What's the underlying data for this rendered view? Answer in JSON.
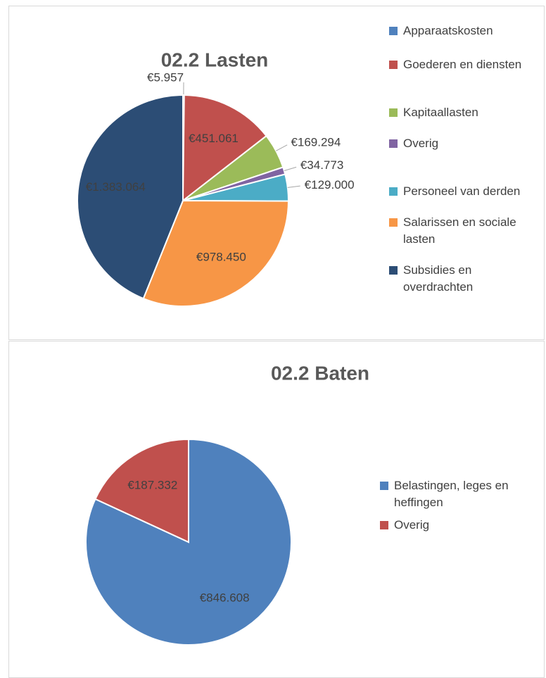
{
  "chart_data": [
    {
      "type": "pie",
      "title": "02.2 Lasten",
      "categories": [
        "Apparaatskosten",
        "Goederen en diensten",
        "Kapitaallasten",
        "Overig",
        "Personeel van derden",
        "Salarissen en sociale lasten",
        "Subsidies en overdrachten"
      ],
      "values": [
        5957,
        451061,
        169294,
        34773,
        129000,
        978450,
        1383064
      ],
      "value_labels": [
        "€5.957",
        "€451.061",
        "€169.294",
        "€34.773",
        "€129.000",
        "€978.450",
        "€1.383.064"
      ],
      "colors": [
        "#4f81bd",
        "#c0504d",
        "#9bbb59",
        "#8064a2",
        "#4bacc6",
        "#f79646",
        "#2c4d75"
      ],
      "legend": "right"
    },
    {
      "type": "pie",
      "title": "02.2 Baten",
      "categories": [
        "Belastingen, leges en heffingen",
        "Overig"
      ],
      "values": [
        846608,
        187332
      ],
      "value_labels": [
        "€846.608",
        "€187.332"
      ],
      "colors": [
        "#4f81bd",
        "#c0504d"
      ],
      "legend": "right"
    }
  ]
}
